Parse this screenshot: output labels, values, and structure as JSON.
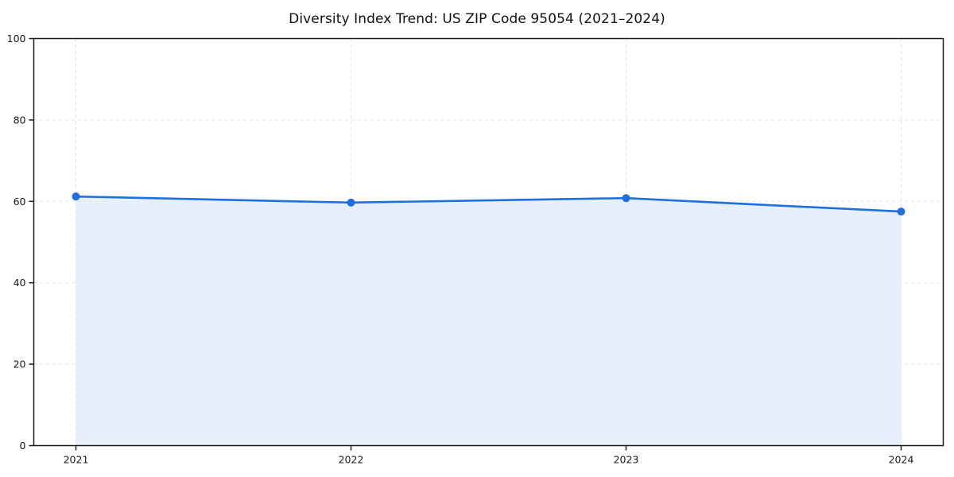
{
  "chart_data": {
    "type": "area",
    "title": "Diversity Index Trend: US ZIP Code 95054 (2021–2024)",
    "series_name": "Diversity Index",
    "x": [
      "2021",
      "2022",
      "2023",
      "2024"
    ],
    "values": [
      61.2,
      59.7,
      60.8,
      57.5
    ],
    "xlabel": "",
    "ylabel": "",
    "ylim": [
      0,
      100
    ],
    "yticks": [
      0,
      20,
      40,
      60,
      80,
      100
    ],
    "grid": true,
    "grid_style": "dashed",
    "legend": false,
    "colors": {
      "line": "#1f6fe0",
      "marker": "#1f6fe0",
      "fill": "#e7effc",
      "grid": "#e2e2e2",
      "spine": "#1a1a1a",
      "tick_label": "#1a1a1a",
      "background": "#ffffff"
    }
  }
}
